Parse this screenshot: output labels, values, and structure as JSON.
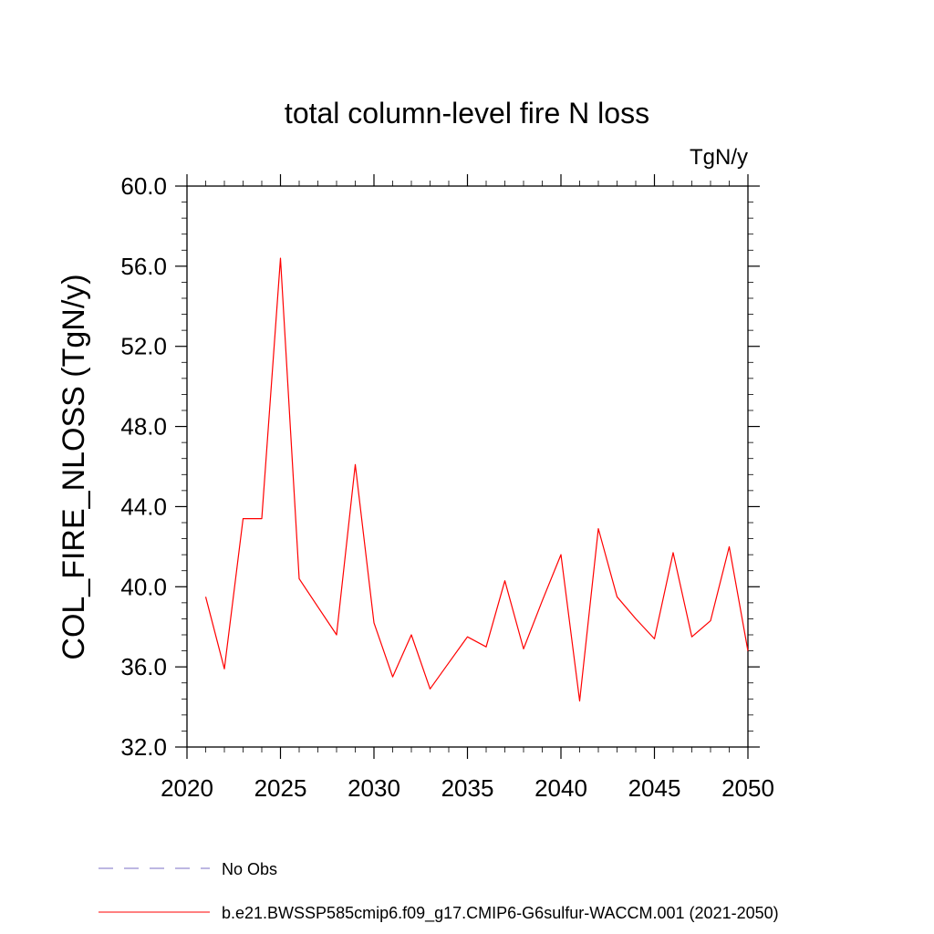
{
  "chart_data": {
    "type": "line",
    "title": "total column-level fire N loss",
    "units_label": "TgN/y",
    "ylabel": "COL_FIRE_NLOSS  (TgN/y)",
    "xlabel": "",
    "xlim": [
      2020,
      2050
    ],
    "ylim": [
      32.0,
      60.0
    ],
    "x_ticks": [
      2020,
      2025,
      2030,
      2035,
      2040,
      2045,
      2050
    ],
    "x_tick_labels": [
      "2020",
      "2025",
      "2030",
      "2035",
      "2040",
      "2045",
      "2050"
    ],
    "y_ticks": [
      32.0,
      36.0,
      40.0,
      44.0,
      48.0,
      52.0,
      56.0,
      60.0
    ],
    "y_tick_labels": [
      "32.0",
      "36.0",
      "40.0",
      "44.0",
      "48.0",
      "52.0",
      "56.0",
      "60.0"
    ],
    "grid": false,
    "legend_position": "bottom",
    "series": [
      {
        "name": "b.e21.BWSSP585cmip6.f09_g17.CMIP6-G6sulfur-WACCM.001 (2021-2050)",
        "color": "#ff0000",
        "style": "solid",
        "x": [
          2021,
          2022,
          2023,
          2024,
          2025,
          2026,
          2027,
          2028,
          2029,
          2030,
          2031,
          2032,
          2033,
          2034,
          2035,
          2036,
          2037,
          2038,
          2039,
          2040,
          2041,
          2042,
          2043,
          2044,
          2045,
          2046,
          2047,
          2048,
          2049,
          2050
        ],
        "y": [
          39.5,
          35.9,
          43.4,
          43.4,
          56.4,
          40.4,
          39.0,
          37.6,
          46.1,
          38.2,
          35.5,
          37.6,
          34.9,
          36.2,
          37.5,
          37.0,
          40.3,
          36.9,
          39.3,
          41.6,
          34.3,
          42.9,
          39.5,
          38.4,
          37.4,
          41.7,
          37.5,
          38.3,
          42.0,
          36.8
        ]
      }
    ],
    "legend": [
      {
        "label": "No Obs",
        "color": "#7b6fc4",
        "style": "dashed"
      },
      {
        "label": "b.e21.BWSSP585cmip6.f09_g17.CMIP6-G6sulfur-WACCM.001 (2021-2050)",
        "color": "#ff0000",
        "style": "solid"
      }
    ]
  }
}
